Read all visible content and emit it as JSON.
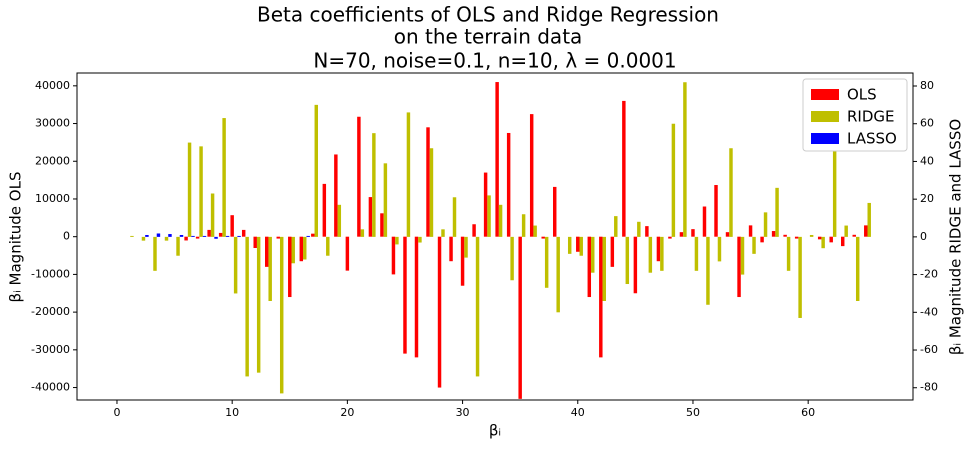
{
  "chart_data": {
    "type": "bar",
    "title": [
      "Beta coefficients of OLS and Ridge Regression",
      "on the terrain data",
      "N=70, noise=0.1, n=10, λ =  0.0001"
    ],
    "xlabel": "βᵢ",
    "ylabel": "βᵢ Magnitude OLS",
    "y2label": "βᵢ Magnitude RIDGE and LASSO",
    "x": [
      0,
      1,
      2,
      3,
      4,
      5,
      6,
      7,
      8,
      9,
      10,
      11,
      12,
      13,
      14,
      15,
      16,
      17,
      18,
      19,
      20,
      21,
      22,
      23,
      24,
      25,
      26,
      27,
      28,
      29,
      30,
      31,
      32,
      33,
      34,
      35,
      36,
      37,
      38,
      39,
      40,
      41,
      42,
      43,
      44,
      45,
      46,
      47,
      48,
      49,
      50,
      51,
      52,
      53,
      54,
      55,
      56,
      57,
      58,
      59,
      60,
      61,
      62,
      63,
      64,
      65
    ],
    "series": [
      {
        "name": "OLS",
        "color": "#ff0000",
        "axis": "y",
        "values": [
          0,
          0,
          0,
          0,
          0,
          0,
          -1000,
          -500,
          1800,
          1000,
          5700,
          1800,
          -3000,
          -8000,
          -500,
          -16000,
          -6500,
          800,
          14000,
          21800,
          -9000,
          31800,
          10500,
          6200,
          -10000,
          -31000,
          -32000,
          29000,
          -40000,
          -6500,
          -13000,
          3300,
          17000,
          41000,
          27500,
          -43000,
          32500,
          -500,
          13200,
          0,
          -4000,
          -16000,
          -32000,
          -8000,
          36000,
          -15000,
          2800,
          -6500,
          -500,
          1200,
          2000,
          8000,
          13700,
          1200,
          -16000,
          3000,
          -1500,
          1500,
          500,
          -500,
          0,
          -700,
          -1500,
          -2500,
          500,
          3000
        ]
      },
      {
        "name": "RIDGE",
        "color": "#bfbf00",
        "axis": "y2",
        "values": [
          0,
          0.5,
          -2,
          -18,
          -2,
          -10,
          50,
          48,
          23,
          63,
          -30,
          -74,
          -72,
          -34,
          -83,
          -14,
          -12,
          70,
          -10,
          17,
          0,
          4,
          55,
          39,
          -4,
          66,
          -3,
          47,
          4,
          21,
          -11,
          -74,
          22,
          17,
          -23,
          12,
          6,
          -27,
          -40,
          -9,
          -10,
          -19,
          -34,
          11,
          -25,
          8,
          -19,
          -18,
          60,
          82,
          -18,
          -36,
          -13,
          47,
          -20,
          -9,
          13,
          26,
          -18,
          -43,
          1,
          -6,
          46,
          6,
          -34,
          18
        ]
      },
      {
        "name": "LASSO",
        "color": "#0000ff",
        "axis": "y2",
        "values": [
          0,
          0,
          1,
          1.8,
          1.5,
          1,
          0.5,
          0.5,
          -1,
          0.5,
          0.5,
          0,
          0,
          0,
          0,
          0,
          0.5,
          0,
          0,
          0,
          0,
          0,
          0,
          0,
          0,
          0,
          0,
          0,
          0,
          0,
          0,
          0,
          0,
          0,
          0,
          0,
          0,
          0,
          0,
          0,
          0,
          0,
          0,
          0,
          0,
          0,
          0,
          0,
          0,
          0,
          0,
          0,
          0,
          0,
          0,
          0,
          0,
          0,
          0,
          0,
          0,
          0,
          0,
          0,
          0,
          0
        ]
      }
    ],
    "xlim": [
      -3.47,
      69.1
    ],
    "xticks": [
      0,
      10,
      20,
      30,
      40,
      50,
      60
    ],
    "ylim": [
      -43300,
      43400
    ],
    "yticks": [
      -40000,
      -30000,
      -20000,
      -10000,
      0,
      10000,
      20000,
      30000,
      40000
    ],
    "y2lim": [
      -86.5,
      86.9
    ],
    "y2ticks": [
      -80,
      -60,
      -40,
      -20,
      0,
      20,
      40,
      60,
      80
    ],
    "bar_width": 0.3,
    "legend": "upper right"
  }
}
